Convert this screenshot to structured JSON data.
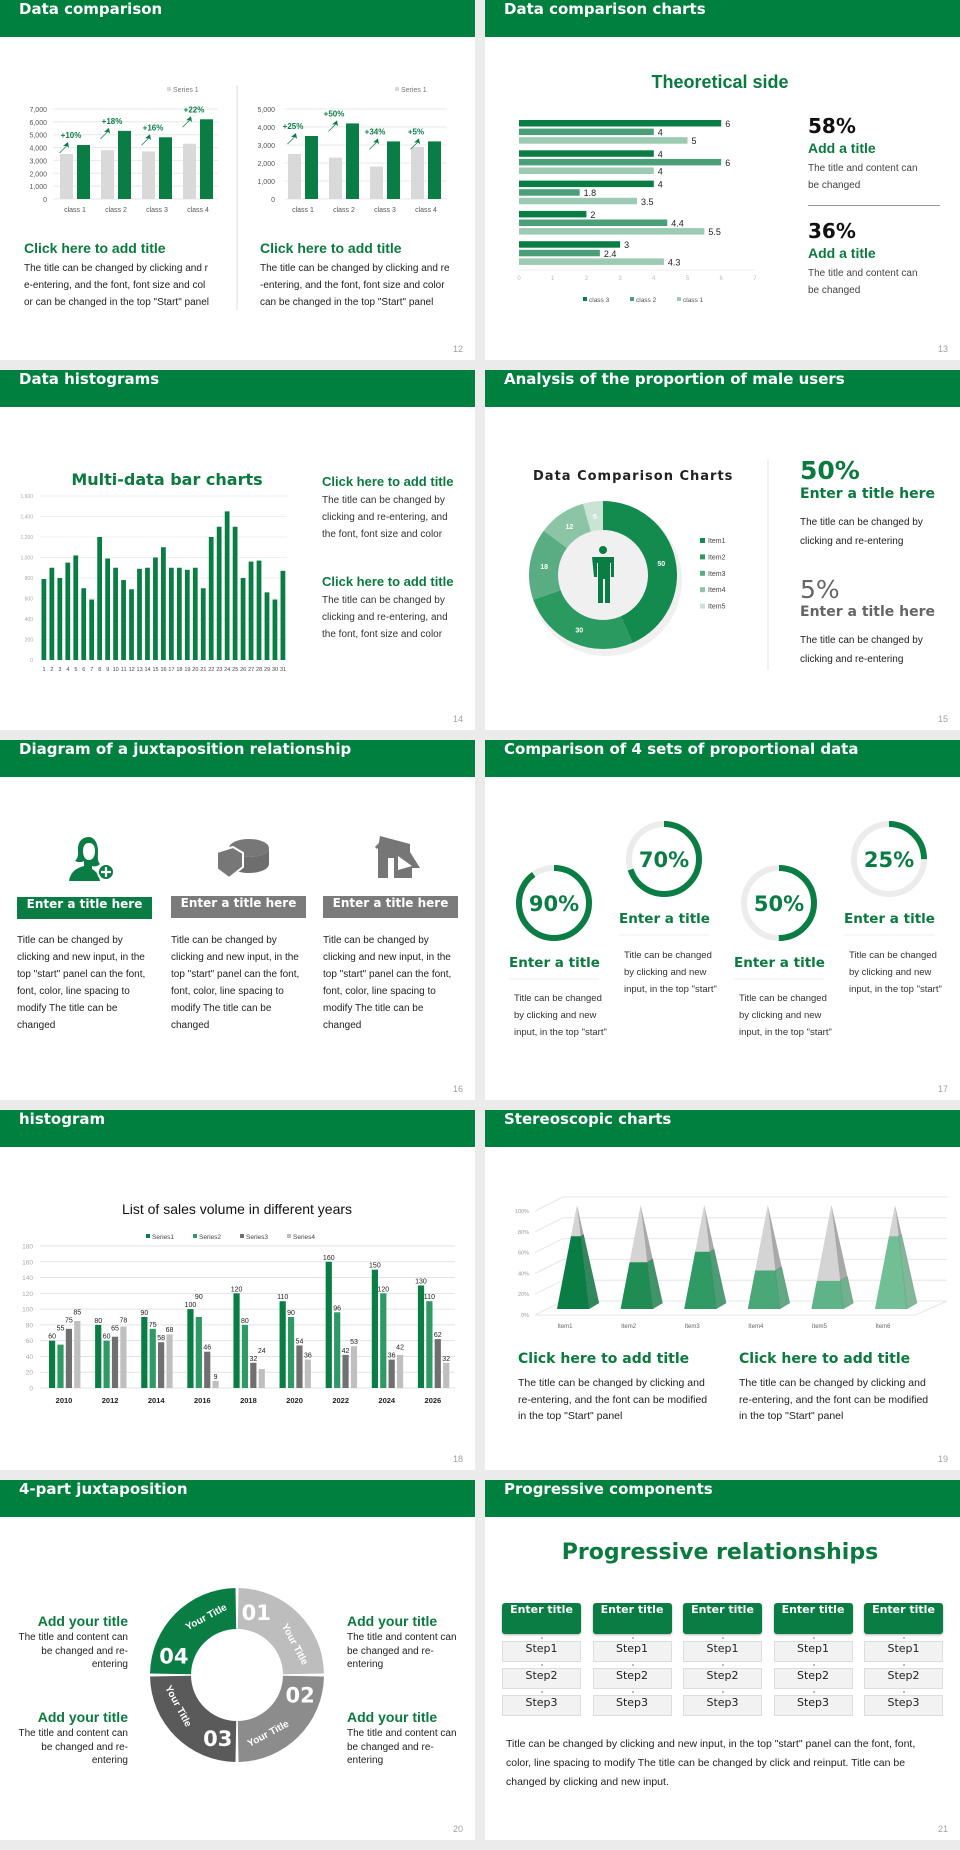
{
  "colors": {
    "brand_green": "#00803f",
    "dark_green": "#0a7d44",
    "mid_green": "#4a9f78",
    "light_green": "#9ccab3",
    "gray_bar": "#d9d9d9",
    "ring_track": "#ececec"
  },
  "slides": {
    "s12": {
      "title": "Data comparison",
      "page": "12",
      "left": {
        "heading": "Click here to add title",
        "body": "The title can be changed by clicking and re-entering, and the font, font size and color can be changed in the top \"Start\" panel"
      },
      "right": {
        "heading": "Click here to add title",
        "body": "The title can be changed by clicking and re-entering, and the font, font size and color can be changed in the top \"Start\" panel"
      }
    },
    "s13": {
      "title": "Data comparison charts",
      "page": "13",
      "chart_title": "Theoretical side",
      "stats": [
        {
          "value": "58%",
          "heading": "Add a title",
          "body": "The title and content can be changed"
        },
        {
          "value": "36%",
          "heading": "Add a title",
          "body": "The title and content can be changed"
        }
      ]
    },
    "s14": {
      "title": "Data histograms",
      "page": "14",
      "chart_title": "Multi-data bar charts",
      "blocks": [
        {
          "heading": "Click here to add title",
          "body": "The title can be changed by clicking and re-entering, and the font, font size and color"
        },
        {
          "heading": "Click here to add title",
          "body": "The title can be changed by clicking and re-entering, and the font, font size and color"
        }
      ]
    },
    "s15": {
      "title": "Analysis of the proportion of male users",
      "page": "15",
      "chart_title": "Data Comparison Charts",
      "stats": [
        {
          "value": "50%",
          "heading": "Enter a title here",
          "body": "The title can be changed by clicking and re-entering"
        },
        {
          "value": "5%",
          "heading": "Enter a title here",
          "body": "The title can be changed by clicking and re-entering"
        }
      ]
    },
    "s16": {
      "title": "Diagram of a juxtaposition relationship",
      "page": "16",
      "columns": [
        {
          "icon": "woman-add-user-icon",
          "heading": "Enter a title here",
          "body": "Title can be changed by clicking and new input, in the top \"start\" panel can the font, font, color, line spacing to modify The title can be changed"
        },
        {
          "icon": "pie-chart-3d-icon",
          "heading": "Enter a title here",
          "body": "Title can be changed by clicking and new input, in the top \"start\" panel can the font, font, color, line spacing to modify The title can be changed"
        },
        {
          "icon": "store-icon",
          "heading": "Enter a title here",
          "body": "Title can be changed by clicking and new input, in the top \"start\" panel can the font, font, color, line spacing to modify The title can be changed"
        }
      ]
    },
    "s17": {
      "title": "Comparison of 4 sets of proportional data",
      "page": "17",
      "rings": [
        {
          "percent": 90,
          "label": "90%",
          "heading": "Enter a title",
          "body": "Title can be changed by clicking and new input, in the top \"start\""
        },
        {
          "percent": 70,
          "label": "70%",
          "heading": "Enter a title",
          "body": "Title can be changed by clicking and new input, in the top \"start\""
        },
        {
          "percent": 50,
          "label": "50%",
          "heading": "Enter a title",
          "body": "Title can be changed by clicking and new input, in the top \"start\""
        },
        {
          "percent": 25,
          "label": "25%",
          "heading": "Enter a title",
          "body": "Title can be changed by clicking and new input, in the top \"start\""
        }
      ]
    },
    "s18": {
      "title": "histogram",
      "page": "18"
    },
    "s19": {
      "title": "Stereoscopic charts",
      "page": "19",
      "blocks": [
        {
          "heading": "Click here to add title",
          "body": "The title can be changed by clicking and re-entering, and the font can be modified in the top \"Start\" panel"
        },
        {
          "heading": "Click here to add title",
          "body": "The title can be changed by clicking and re-entering, and the font can be modified in the top \"Start\" panel"
        }
      ]
    },
    "s20": {
      "title": "4-part juxtaposition",
      "page": "20",
      "segments": [
        {
          "number": "01",
          "label": "Your Title",
          "color": "#bdbdbd"
        },
        {
          "number": "02",
          "label": "Your Title",
          "color": "#8c8c8c"
        },
        {
          "number": "03",
          "label": "Your Title",
          "color": "#5a5a5a"
        },
        {
          "number": "04",
          "label": "Your Title",
          "color": "#0a7d44"
        }
      ],
      "blocks": [
        {
          "heading": "Add your title",
          "body": "The title and content can be changed and re-entering"
        },
        {
          "heading": "Add your title",
          "body": "The title and content can be changed and re-entering"
        },
        {
          "heading": "Add your title",
          "body": "The title and content can be changed and re-entering"
        },
        {
          "heading": "Add your title",
          "body": "The title and content can be changed and re-entering"
        }
      ]
    },
    "s21": {
      "title": "Progressive components",
      "page": "21",
      "heading": "Progressive relationships",
      "columns": [
        {
          "title": "Enter title",
          "steps": [
            "Step1",
            "Step2",
            "Step3"
          ]
        },
        {
          "title": "Enter title",
          "steps": [
            "Step1",
            "Step2",
            "Step3"
          ]
        },
        {
          "title": "Enter title",
          "steps": [
            "Step1",
            "Step2",
            "Step3"
          ]
        },
        {
          "title": "Enter title",
          "steps": [
            "Step1",
            "Step2",
            "Step3"
          ]
        },
        {
          "title": "Enter title",
          "steps": [
            "Step1",
            "Step2",
            "Step3"
          ]
        }
      ],
      "body": "Title can be changed by clicking and new input, in the top \"start\" panel can the font, font, color, line spacing to modify The title can be changed by click and reinput. Title can be changed by clicking and new input."
    }
  },
  "chart_data": [
    {
      "id": "s12-left",
      "type": "bar",
      "categories": [
        "class 1",
        "class 2",
        "class 3",
        "class 4"
      ],
      "legend": "Series 1",
      "series": [
        {
          "name": "Series 1",
          "values": [
            3500,
            3800,
            3700,
            4300
          ]
        },
        {
          "values": [
            4200,
            5300,
            4800,
            6200
          ]
        }
      ],
      "annotations": [
        "+10%",
        "+18%",
        "+16%",
        "+22%"
      ],
      "ylim": [
        0,
        7000
      ],
      "yticks": [
        "0",
        "1,000",
        "2,000",
        "3,000",
        "4,000",
        "5,000",
        "6,000",
        "7,000"
      ]
    },
    {
      "id": "s12-right",
      "type": "bar",
      "categories": [
        "class 1",
        "class 2",
        "class 3",
        "class 4"
      ],
      "legend": "Series 1",
      "series": [
        {
          "name": "Series 1",
          "values": [
            2500,
            2300,
            1800,
            2900
          ]
        },
        {
          "values": [
            3500,
            4200,
            3200,
            3200
          ]
        }
      ],
      "annotations": [
        "+25%",
        "+50%",
        "+34%",
        "+5%"
      ],
      "ylim": [
        0,
        5000
      ],
      "yticks": [
        "0",
        "1,000",
        "2,000",
        "3,000",
        "4,000",
        "5,000"
      ]
    },
    {
      "id": "s13",
      "type": "bar",
      "orientation": "horizontal",
      "xlim": [
        0,
        7
      ],
      "xticks": [
        "0",
        "1",
        "2",
        "3",
        "4",
        "5",
        "6",
        "7"
      ],
      "series": [
        {
          "name": "class 3",
          "values": [
            6,
            4,
            4,
            2,
            3
          ]
        },
        {
          "name": "class 2",
          "values": [
            4,
            6,
            1.8,
            4.4,
            2.4
          ]
        },
        {
          "name": "class 1",
          "values": [
            5,
            4,
            3.5,
            5.5,
            4.3
          ]
        }
      ],
      "data_labels": true,
      "legend": "bottom"
    },
    {
      "id": "s14",
      "type": "bar",
      "categories": [
        "1",
        "2",
        "3",
        "4",
        "5",
        "6",
        "7",
        "8",
        "9",
        "10",
        "11",
        "12",
        "13",
        "14",
        "15",
        "16",
        "17",
        "18",
        "19",
        "20",
        "21",
        "22",
        "23",
        "24",
        "25",
        "26",
        "27",
        "28",
        "29",
        "30",
        "31"
      ],
      "values": [
        790,
        900,
        800,
        950,
        1020,
        700,
        590,
        1200,
        990,
        900,
        780,
        690,
        890,
        900,
        1000,
        1100,
        900,
        900,
        880,
        900,
        700,
        1200,
        1300,
        1450,
        1300,
        800,
        960,
        970,
        660,
        590,
        870
      ],
      "ylim": [
        0,
        1600
      ],
      "yticks": [
        "0",
        "200",
        "400",
        "600",
        "800",
        "1,000",
        "1,200",
        "1,400",
        "1,600"
      ]
    },
    {
      "id": "s15",
      "type": "pie",
      "donut": true,
      "categories": [
        "Item1",
        "Item2",
        "Item3",
        "Item4",
        "Item5"
      ],
      "values": [
        50,
        30,
        18,
        12,
        5
      ],
      "colors": [
        "#138a4e",
        "#2a9a60",
        "#5aad83",
        "#8cc5a6",
        "#c9e3d5"
      ],
      "legend": "right"
    },
    {
      "id": "s18",
      "type": "bar",
      "title": "List of sales volume in different years",
      "categories": [
        "2010",
        "2012",
        "2014",
        "2016",
        "2018",
        "2020",
        "2022",
        "2024",
        "2026"
      ],
      "series": [
        {
          "name": "Series1",
          "values": [
            60,
            80,
            90,
            100,
            120,
            110,
            160,
            150,
            130
          ],
          "color": "#0a7d44"
        },
        {
          "name": "Series2",
          "values": [
            55,
            60,
            75,
            90,
            80,
            90,
            96,
            120,
            110
          ],
          "color": "#2e9a64"
        },
        {
          "name": "Series3",
          "values": [
            75,
            65,
            58,
            46,
            32,
            54,
            42,
            36,
            62
          ],
          "color": "#707070"
        },
        {
          "name": "Series4",
          "values": [
            85,
            78,
            68,
            9,
            24,
            36,
            53,
            42,
            32
          ],
          "color": "#bfbfbf"
        }
      ],
      "ylim": [
        0,
        180
      ],
      "yticks": [
        "0",
        "20",
        "40",
        "60",
        "80",
        "100",
        "120",
        "140",
        "160",
        "180"
      ],
      "data_labels": true,
      "legend": "top",
      "grid": true
    },
    {
      "id": "s19",
      "type": "bar",
      "style": "3d-pyramid-stacked-percent",
      "categories": [
        "Item1",
        "Item2",
        "Item3",
        "Item4",
        "Item5",
        "Item6"
      ],
      "values": [
        70,
        45,
        55,
        37,
        27,
        70
      ],
      "ylim": [
        0,
        100
      ],
      "yticks": [
        "0%",
        "20%",
        "40%",
        "60%",
        "80%",
        "100%"
      ],
      "colors": [
        "#0a7d44",
        "#1f8c53",
        "#2f9a63",
        "#4aa878",
        "#5fb487",
        "#72bf95"
      ]
    }
  ]
}
